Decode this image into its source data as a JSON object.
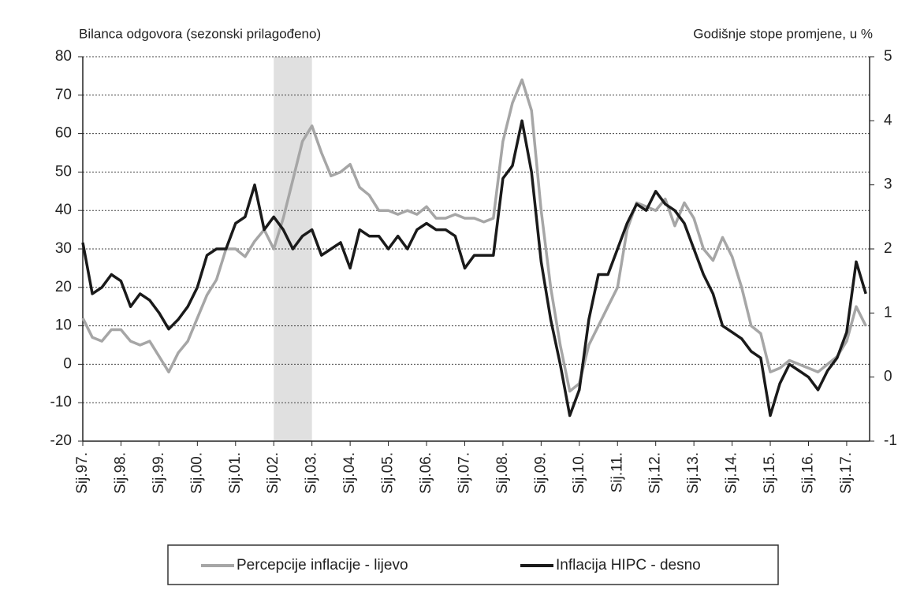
{
  "chart_data": {
    "type": "line",
    "y_label": "Bilanca odgovora (sezonski prilagođeno)",
    "y2_label": "Godišnje stope promjene, u %",
    "x": [
      1997,
      1997.25,
      1997.5,
      1997.75,
      1998,
      1998.25,
      1998.5,
      1998.75,
      1999,
      1999.25,
      1999.5,
      1999.75,
      2000,
      2000.25,
      2000.5,
      2000.75,
      2001,
      2001.25,
      2001.5,
      2001.75,
      2002,
      2002.25,
      2002.5,
      2002.75,
      2003,
      2003.25,
      2003.5,
      2003.75,
      2004,
      2004.25,
      2004.5,
      2004.75,
      2005,
      2005.25,
      2005.5,
      2005.75,
      2006,
      2006.25,
      2006.5,
      2006.75,
      2007,
      2007.25,
      2007.5,
      2007.75,
      2008,
      2008.25,
      2008.5,
      2008.75,
      2009,
      2009.25,
      2009.5,
      2009.75,
      2010,
      2010.25,
      2010.5,
      2010.75,
      2011,
      2011.25,
      2011.5,
      2011.75,
      2012,
      2012.25,
      2012.5,
      2012.75,
      2013,
      2013.25,
      2013.5,
      2013.75,
      2014,
      2014.25,
      2014.5,
      2014.75,
      2015,
      2015.25,
      2015.5,
      2015.75,
      2016,
      2016.25,
      2016.5,
      2016.75,
      2017,
      2017.25,
      2017.5
    ],
    "series": [
      {
        "name": "Percepcije inflacije - lijevo",
        "color": "#a6a6a6",
        "axis": "y",
        "values": [
          12,
          7,
          6,
          9,
          9,
          6,
          5,
          6,
          2,
          -2,
          3,
          6,
          12,
          18,
          22,
          30,
          30,
          28,
          32,
          35,
          30,
          38,
          48,
          58,
          62,
          55,
          49,
          50,
          52,
          46,
          44,
          40,
          40,
          39,
          40,
          39,
          41,
          38,
          38,
          39,
          38,
          38,
          37,
          38,
          58,
          68,
          74,
          66,
          40,
          20,
          5,
          -7,
          -5,
          5,
          10,
          15,
          20,
          35,
          42,
          41,
          40,
          43,
          36,
          42,
          38,
          30,
          27,
          33,
          28,
          20,
          10,
          8,
          -2,
          -1,
          1,
          0,
          -1,
          -2,
          0,
          2,
          6,
          15,
          10
        ]
      },
      {
        "name": "Inflacija HIPC - desno",
        "color": "#1a1a1a",
        "axis": "y2",
        "values": [
          2.1,
          1.3,
          1.4,
          1.6,
          1.5,
          1.1,
          1.3,
          1.2,
          1.0,
          0.75,
          0.9,
          1.1,
          1.4,
          1.9,
          2.0,
          2.0,
          2.4,
          2.5,
          3.0,
          2.3,
          2.5,
          2.3,
          2.0,
          2.2,
          2.3,
          1.9,
          2.0,
          2.1,
          1.7,
          2.3,
          2.2,
          2.2,
          2.0,
          2.2,
          2.0,
          2.3,
          2.4,
          2.3,
          2.3,
          2.2,
          1.7,
          1.9,
          1.9,
          1.9,
          3.1,
          3.3,
          4.0,
          3.2,
          1.8,
          0.9,
          0.2,
          -0.6,
          -0.2,
          0.9,
          1.6,
          1.6,
          2.0,
          2.4,
          2.7,
          2.6,
          2.9,
          2.7,
          2.6,
          2.4,
          2.0,
          1.6,
          1.3,
          0.8,
          0.7,
          0.6,
          0.4,
          0.3,
          -0.6,
          -0.1,
          0.2,
          0.1,
          0.0,
          -0.2,
          0.1,
          0.3,
          0.7,
          1.8,
          1.3
        ]
      }
    ],
    "shaded_region": [
      2002,
      2003
    ],
    "xlim": [
      1997,
      2017.6
    ],
    "xticks": [
      {
        "value": 1997,
        "label": "Sij.97."
      },
      {
        "value": 1998,
        "label": "Sij.98."
      },
      {
        "value": 1999,
        "label": "Sij.99."
      },
      {
        "value": 2000,
        "label": "Sij.00."
      },
      {
        "value": 2001,
        "label": "Sij.01."
      },
      {
        "value": 2002,
        "label": "Sij.02."
      },
      {
        "value": 2003,
        "label": "Sij.03."
      },
      {
        "value": 2004,
        "label": "Sij.04."
      },
      {
        "value": 2005,
        "label": "Sij.05."
      },
      {
        "value": 2006,
        "label": "Sij.06."
      },
      {
        "value": 2007,
        "label": "Sij.07."
      },
      {
        "value": 2008,
        "label": "Sij.08."
      },
      {
        "value": 2009,
        "label": "Sij.09."
      },
      {
        "value": 2010,
        "label": "Sij.10."
      },
      {
        "value": 2011,
        "label": "Sij.11."
      },
      {
        "value": 2012,
        "label": "Sij.12."
      },
      {
        "value": 2013,
        "label": "Sij.13."
      },
      {
        "value": 2014,
        "label": "Sij.14."
      },
      {
        "value": 2015,
        "label": "Sij.15."
      },
      {
        "value": 2016,
        "label": "Sij.16."
      },
      {
        "value": 2017,
        "label": "Sij.17."
      }
    ],
    "ylim": [
      -20,
      80
    ],
    "yticks": [
      -20,
      -10,
      0,
      10,
      20,
      30,
      40,
      50,
      60,
      70,
      80
    ],
    "y2lim": [
      -1,
      5
    ],
    "y2ticks": [
      -1,
      0,
      1,
      2,
      3,
      4,
      5
    ],
    "grid": true,
    "legend": "bottom"
  }
}
